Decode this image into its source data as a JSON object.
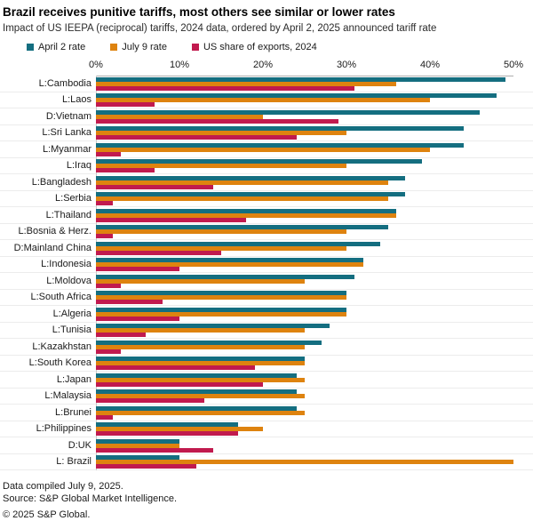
{
  "chart_data": {
    "type": "bar",
    "orientation": "horizontal",
    "title": "Brazil receives punitive tariffs, most others see similar or lower rates",
    "subtitle": "Impact of US IEEPA (reciprocal) tariffs, 2024 data, ordered by April 2, 2025 announced tariff rate",
    "unit": "%",
    "xlim": [
      0,
      50
    ],
    "x_ticks": [
      "0%",
      "10%",
      "20%",
      "30%",
      "40%",
      "50%"
    ],
    "grid": "horizontal category separators only, no vertical gridlines",
    "legend_position": "top",
    "categories": [
      "L:Cambodia",
      "L:Laos",
      "D:Vietnam",
      "L:Sri Lanka",
      "L:Myanmar",
      "L:Iraq",
      "L:Bangladesh",
      "L:Serbia",
      "L:Thailand",
      "L:Bosnia & Herz.",
      "D:Mainland China",
      "L:Indonesia",
      "L:Moldova",
      "L:South Africa",
      "L:Algeria",
      "L:Tunisia",
      "L:Kazakhstan",
      "L:South Korea",
      "L:Japan",
      "L:Malaysia",
      "L:Brunei",
      "L:Philippines",
      "D:UK",
      "L: Brazil"
    ],
    "series": [
      {
        "name": "April 2 rate",
        "color": "#146E80",
        "values": [
          49,
          48,
          46,
          44,
          44,
          39,
          37,
          37,
          36,
          35,
          34,
          32,
          31,
          30,
          30,
          28,
          27,
          25,
          24,
          24,
          24,
          17,
          10,
          10
        ]
      },
      {
        "name": "July 9 rate",
        "color": "#DE830F",
        "values": [
          36,
          40,
          20,
          30,
          40,
          30,
          35,
          35,
          36,
          30,
          30,
          32,
          25,
          30,
          30,
          25,
          25,
          25,
          25,
          25,
          25,
          20,
          10,
          50
        ]
      },
      {
        "name": "US share of exports, 2024",
        "color": "#C11A4E",
        "values": [
          31,
          7,
          29,
          24,
          3,
          7,
          14,
          2,
          18,
          2,
          15,
          10,
          3,
          8,
          10,
          6,
          3,
          19,
          20,
          13,
          2,
          17,
          14,
          12
        ]
      }
    ]
  },
  "footer": {
    "line1": "Data compiled July 9, 2025.",
    "line2": "Source: S&P Global Market Intelligence.",
    "line3": "© 2025 S&P Global."
  }
}
